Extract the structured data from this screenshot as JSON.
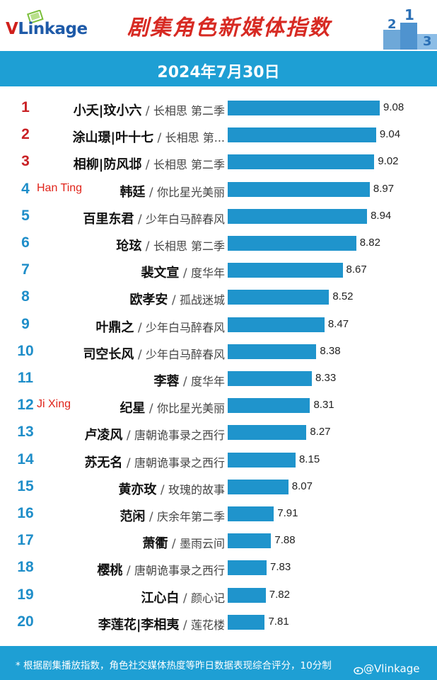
{
  "header": {
    "logo_text_v": "V",
    "logo_text_rest": "Linkage",
    "title": "剧集角色新媒体指数",
    "date": "2024年7月30日",
    "podium_numbers": [
      "2",
      "1",
      "3"
    ]
  },
  "annotations": {
    "han_ting": "Han Ting",
    "ji_xing": "Ji Xing"
  },
  "footer": {
    "note": "* 根据剧集播放指数，角色社交媒体热度等昨日数据表现综合评分，10分制",
    "watermark": "@Vlinkage"
  },
  "colors": {
    "bar": "#1f94cc",
    "band": "#1e9fd4",
    "rank_top": "#c92024",
    "rank": "#1f8ec9",
    "title": "#d72a23"
  },
  "chart_data": {
    "type": "bar",
    "orientation": "horizontal",
    "title": "剧集角色新媒体指数",
    "subtitle": "2024年7月30日",
    "xlim": [
      0,
      9.08
    ],
    "grid": false,
    "categories": [
      {
        "rank": "1",
        "role": "小夭|玟小六",
        "show": "长相思 第二季"
      },
      {
        "rank": "2",
        "role": "涂山璟|叶十七",
        "show": "长相思 第..."
      },
      {
        "rank": "3",
        "role": "相柳|防风邶",
        "show": "长相思 第二季"
      },
      {
        "rank": "4",
        "role": "韩廷",
        "show": "你比星光美丽"
      },
      {
        "rank": "5",
        "role": "百里东君",
        "show": "少年白马醉春风"
      },
      {
        "rank": "6",
        "role": "玱玹",
        "show": "长相思 第二季"
      },
      {
        "rank": "7",
        "role": "裴文宣",
        "show": "度华年"
      },
      {
        "rank": "8",
        "role": "欧孝安",
        "show": "孤战迷城"
      },
      {
        "rank": "9",
        "role": "叶鼎之",
        "show": "少年白马醉春风"
      },
      {
        "rank": "10",
        "role": "司空长风",
        "show": "少年白马醉春风"
      },
      {
        "rank": "11",
        "role": "李蓉",
        "show": "度华年"
      },
      {
        "rank": "12",
        "role": "纪星",
        "show": "你比星光美丽"
      },
      {
        "rank": "13",
        "role": "卢凌风",
        "show": "唐朝诡事录之西行"
      },
      {
        "rank": "14",
        "role": "苏无名",
        "show": "唐朝诡事录之西行"
      },
      {
        "rank": "15",
        "role": "黄亦玫",
        "show": "玫瑰的故事"
      },
      {
        "rank": "16",
        "role": "范闲",
        "show": "庆余年第二季"
      },
      {
        "rank": "17",
        "role": "萧衢",
        "show": "墨雨云间"
      },
      {
        "rank": "18",
        "role": "樱桃",
        "show": "唐朝诡事录之西行"
      },
      {
        "rank": "19",
        "role": "江心白",
        "show": "颜心记"
      },
      {
        "rank": "20",
        "role": "李莲花|李相夷",
        "show": "莲花楼"
      }
    ],
    "values": [
      9.08,
      9.04,
      9.02,
      8.97,
      8.94,
      8.82,
      8.67,
      8.52,
      8.47,
      8.38,
      8.33,
      8.31,
      8.27,
      8.15,
      8.07,
      7.91,
      7.88,
      7.83,
      7.82,
      7.81
    ]
  }
}
